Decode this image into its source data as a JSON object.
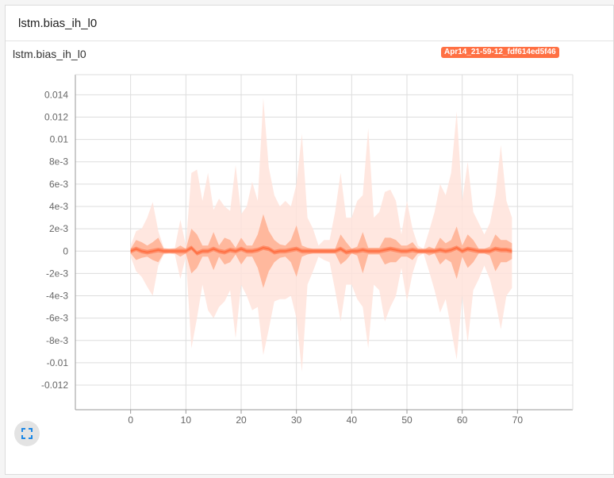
{
  "card": {
    "header_title": "lstm.bias_ih_l0",
    "chart_title": "lstm.bias_ih_l0",
    "run_label": "Apr14_21-59-12_fdf614ed5f46"
  },
  "colors": {
    "run": "#ff7043",
    "band_outer": "#ffe3da",
    "band_mid": "#ffb296",
    "band_inner": "#ff8a65",
    "median": "#ff7043",
    "grid": "#dddddd"
  },
  "icons": {
    "expand": "fullscreen-icon"
  },
  "chart_data": {
    "type": "area",
    "xlim": [
      -10,
      80
    ],
    "ylim": [
      -0.0142,
      0.0158
    ],
    "x_ticks": [
      0,
      10,
      20,
      30,
      40,
      50,
      60,
      70
    ],
    "x_tick_labels": [
      "0",
      "10",
      "20",
      "30",
      "40",
      "50",
      "60",
      "70"
    ],
    "y_ticks": [
      0.014,
      0.012,
      0.01,
      0.008,
      0.006,
      0.004,
      0.002,
      0,
      -0.002,
      -0.004,
      -0.006,
      -0.008,
      -0.01,
      -0.012
    ],
    "y_tick_labels": [
      "0.014",
      "0.012",
      "0.01",
      "8e-3",
      "6e-3",
      "4e-3",
      "2e-3",
      "0",
      "-2e-3",
      "-4e-3",
      "-6e-3",
      "-8e-3",
      "-0.01",
      "-0.012"
    ],
    "xlabel": "",
    "ylabel": "",
    "grid": true,
    "series": [
      {
        "name": "Apr14_21-59-12_fdf614ed5f46",
        "x": [
          0,
          1,
          2,
          3,
          4,
          5,
          6,
          7,
          8,
          9,
          10,
          11,
          12,
          13,
          14,
          15,
          16,
          17,
          18,
          19,
          20,
          21,
          22,
          23,
          24,
          25,
          26,
          27,
          28,
          29,
          30,
          31,
          32,
          33,
          34,
          35,
          36,
          37,
          38,
          39,
          40,
          41,
          42,
          43,
          44,
          45,
          46,
          47,
          48,
          49,
          50,
          51,
          52,
          53,
          54,
          55,
          56,
          57,
          58,
          59,
          60,
          61,
          62,
          63,
          64,
          65,
          66,
          67,
          68,
          69
        ],
        "max": [
          0.0005,
          0.0018,
          0.002,
          0.003,
          0.0044,
          0.0018,
          0.0003,
          0.0002,
          0.0003,
          0.0028,
          0.0005,
          0.007,
          0.0073,
          0.0045,
          0.007,
          0.0037,
          0.0047,
          0.004,
          0.0036,
          0.0077,
          0.0033,
          0.004,
          0.0062,
          0.0045,
          0.0137,
          0.0075,
          0.005,
          0.004,
          0.0045,
          0.004,
          0.006,
          0.0105,
          0.003,
          0.002,
          0.0005,
          0.001,
          0.001,
          0.0035,
          0.007,
          0.003,
          0.003,
          0.0045,
          0.005,
          0.011,
          0.003,
          0.0035,
          0.0053,
          0.0055,
          0.0045,
          0.0015,
          0.0045,
          0.002,
          0.0005,
          0.0002,
          0.0018,
          0.0035,
          0.006,
          0.005,
          0.007,
          0.0125,
          0.0045,
          0.008,
          0.0035,
          0.0025,
          0.0015,
          0.0025,
          0.005,
          0.0095,
          0.0045,
          0.003
        ],
        "q3": [
          0.0002,
          0.001,
          0.0008,
          0.0005,
          0.0008,
          0.0012,
          0.0002,
          0.0001,
          0.0002,
          0.0005,
          0.0002,
          0.002,
          0.0015,
          0.0005,
          0.0005,
          0.0017,
          0.0005,
          0.0012,
          0.001,
          0.0003,
          0.0012,
          0.0005,
          0.0005,
          0.0015,
          0.0033,
          0.0018,
          0.001,
          0.0006,
          0.0005,
          0.001,
          0.0023,
          0.0005,
          0.0003,
          0.0002,
          0.0002,
          0.0002,
          0.0002,
          0.0002,
          0.0015,
          0.0008,
          0.0002,
          0.0004,
          0.0017,
          0.0003,
          0.0003,
          0.0003,
          0.0012,
          0.0012,
          0.001,
          0.0005,
          0.0005,
          0.0008,
          0.0002,
          0.0001,
          0.0004,
          0.0002,
          0.0012,
          0.0007,
          0.001,
          0.0022,
          0.0005,
          0.0015,
          0.001,
          0.0002,
          0.0002,
          0.0004,
          0.0015,
          0.001,
          0.001,
          0.0007
        ],
        "q1": [
          -0.0002,
          -0.0008,
          -0.0006,
          -0.0005,
          -0.0008,
          -0.001,
          -0.0002,
          -0.0001,
          -0.0002,
          -0.0005,
          -0.0002,
          -0.002,
          -0.0015,
          -0.0005,
          -0.0005,
          -0.0017,
          -0.0005,
          -0.0012,
          -0.001,
          -0.0003,
          -0.0012,
          -0.0005,
          -0.0005,
          -0.0015,
          -0.0033,
          -0.0018,
          -0.001,
          -0.0006,
          -0.0005,
          -0.001,
          -0.0023,
          -0.0005,
          -0.0003,
          -0.0002,
          -0.0002,
          -0.0002,
          -0.0002,
          -0.0002,
          -0.0012,
          -0.0008,
          -0.0002,
          -0.0004,
          -0.002,
          -0.0003,
          -0.0003,
          -0.0003,
          -0.0012,
          -0.001,
          -0.001,
          -0.0005,
          -0.0005,
          -0.0008,
          -0.0002,
          -0.0001,
          -0.0004,
          -0.0002,
          -0.0012,
          -0.0007,
          -0.001,
          -0.0025,
          -0.0005,
          -0.0015,
          -0.001,
          -0.0002,
          -0.0002,
          -0.0004,
          -0.0018,
          -0.001,
          -0.001,
          -0.0007
        ],
        "min": [
          -0.0005,
          -0.0018,
          -0.0023,
          -0.0032,
          -0.004,
          -0.0013,
          -0.0003,
          -0.0002,
          -0.0003,
          -0.0025,
          -0.0005,
          -0.0087,
          -0.006,
          -0.003,
          -0.0053,
          -0.006,
          -0.005,
          -0.0045,
          -0.0035,
          -0.0078,
          -0.003,
          -0.004,
          -0.0053,
          -0.005,
          -0.0093,
          -0.007,
          -0.0045,
          -0.0043,
          -0.0043,
          -0.004,
          -0.006,
          -0.0108,
          -0.003,
          -0.0018,
          -0.0005,
          -0.0008,
          -0.001,
          -0.0035,
          -0.0063,
          -0.003,
          -0.003,
          -0.0043,
          -0.005,
          -0.0087,
          -0.003,
          -0.0035,
          -0.0063,
          -0.005,
          -0.004,
          -0.0015,
          -0.0045,
          -0.002,
          -0.0005,
          -0.0002,
          -0.0018,
          -0.0035,
          -0.0055,
          -0.0043,
          -0.007,
          -0.0097,
          -0.004,
          -0.0082,
          -0.0035,
          -0.0025,
          -0.0013,
          -0.0025,
          -0.0045,
          -0.007,
          -0.004,
          -0.0033
        ],
        "median": [
          0.0,
          0.0002,
          0.0,
          -0.0001,
          0.0,
          0.0001,
          0.0,
          0.0,
          0.0,
          0.0,
          0.0,
          0.0003,
          -0.0002,
          0.0,
          0.0,
          0.0002,
          0.0,
          -0.0001,
          0.0001,
          0.0,
          0.0002,
          0.0,
          0.0,
          0.0001,
          0.0003,
          0.0002,
          -0.0001,
          0.0,
          0.0,
          0.0001,
          0.0002,
          0.0,
          0.0,
          0.0,
          0.0,
          0.0,
          0.0,
          0.0,
          0.0002,
          -0.0001,
          0.0,
          0.0,
          0.0001,
          0.0,
          0.0,
          0.0,
          0.0001,
          0.0002,
          0.0001,
          0.0,
          0.0,
          0.0001,
          0.0,
          0.0,
          0.0,
          0.0,
          0.0001,
          0.0,
          0.0001,
          0.0003,
          0.0,
          0.0002,
          0.0001,
          0.0,
          0.0,
          0.0,
          0.0002,
          0.0001,
          0.0001,
          0.0
        ]
      }
    ]
  }
}
